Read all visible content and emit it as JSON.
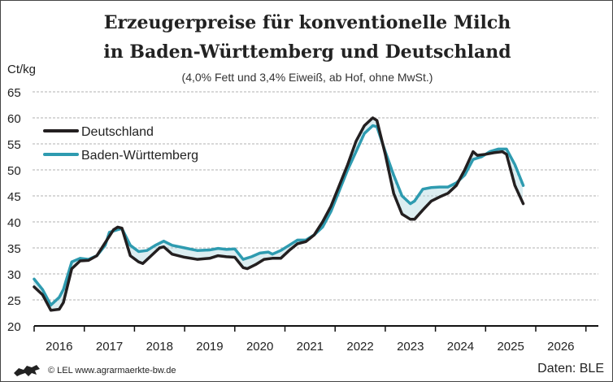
{
  "chart_data": {
    "type": "line",
    "title_line1": "Erzeugerpreise für konventionelle Milch",
    "title_line2": "in Baden-Württemberg und Deutschland",
    "subtitle": "(4,0% Fett und 3,4% Eiweiß, ab Hof, ohne MwSt.)",
    "ylabel": "Ct/kg",
    "ylim": [
      20,
      65
    ],
    "yticks": [
      20,
      25,
      30,
      35,
      40,
      45,
      50,
      55,
      60,
      65
    ],
    "xticks": [
      "2016",
      "2017",
      "2018",
      "2019",
      "2020",
      "2021",
      "2022",
      "2023",
      "2024",
      "2025",
      "2026"
    ],
    "grid": true,
    "legend_placement": "top-left",
    "series": [
      {
        "name": "Deutschland",
        "color": "#231f20",
        "points": [
          [
            "2016-01",
            27.5
          ],
          [
            "2016-03",
            26
          ],
          [
            "2016-05",
            23
          ],
          [
            "2016-07",
            23.2
          ],
          [
            "2016-08",
            24.5
          ],
          [
            "2016-10",
            31
          ],
          [
            "2016-12",
            32.5
          ],
          [
            "2017-02",
            32.6
          ],
          [
            "2017-04",
            33.5
          ],
          [
            "2017-06",
            36
          ],
          [
            "2017-08",
            38.5
          ],
          [
            "2017-09",
            39
          ],
          [
            "2017-10",
            38.8
          ],
          [
            "2017-12",
            33.5
          ],
          [
            "2018-02",
            32.3
          ],
          [
            "2018-03",
            32
          ],
          [
            "2018-05",
            33.5
          ],
          [
            "2018-07",
            35
          ],
          [
            "2018-08",
            35.2
          ],
          [
            "2018-10",
            33.8
          ],
          [
            "2019-01",
            33.2
          ],
          [
            "2019-04",
            32.8
          ],
          [
            "2019-07",
            33
          ],
          [
            "2019-09",
            33.5
          ],
          [
            "2019-11",
            33.3
          ],
          [
            "2020-01",
            33.2
          ],
          [
            "2020-03",
            31.2
          ],
          [
            "2020-04",
            31
          ],
          [
            "2020-06",
            31.8
          ],
          [
            "2020-08",
            32.8
          ],
          [
            "2020-10",
            33
          ],
          [
            "2020-12",
            33
          ],
          [
            "2021-02",
            34.5
          ],
          [
            "2021-04",
            35.8
          ],
          [
            "2021-06",
            36.2
          ],
          [
            "2021-08",
            37.5
          ],
          [
            "2021-10",
            40
          ],
          [
            "2021-12",
            43
          ],
          [
            "2022-02",
            47
          ],
          [
            "2022-04",
            51
          ],
          [
            "2022-06",
            55.5
          ],
          [
            "2022-08",
            58.5
          ],
          [
            "2022-10",
            60
          ],
          [
            "2022-11",
            59.5
          ],
          [
            "2023-01",
            53
          ],
          [
            "2023-03",
            45.5
          ],
          [
            "2023-05",
            41.5
          ],
          [
            "2023-07",
            40.5
          ],
          [
            "2023-08",
            40.5
          ],
          [
            "2023-10",
            42.3
          ],
          [
            "2023-12",
            44
          ],
          [
            "2024-02",
            44.8
          ],
          [
            "2024-04",
            45.5
          ],
          [
            "2024-06",
            47
          ],
          [
            "2024-08",
            50
          ],
          [
            "2024-10",
            53.5
          ],
          [
            "2024-11",
            52.8
          ],
          [
            "2025-01",
            53
          ],
          [
            "2025-03",
            53.3
          ],
          [
            "2025-05",
            53.5
          ],
          [
            "2025-06",
            53
          ],
          [
            "2025-08",
            47
          ],
          [
            "2025-10",
            43.5
          ]
        ]
      },
      {
        "name": "Baden-Württemberg",
        "color": "#2e9bb0",
        "points": [
          [
            "2016-01",
            29
          ],
          [
            "2016-03",
            27
          ],
          [
            "2016-05",
            24
          ],
          [
            "2016-07",
            25.5
          ],
          [
            "2016-08",
            27
          ],
          [
            "2016-10",
            32.3
          ],
          [
            "2016-12",
            33
          ],
          [
            "2017-02",
            32.8
          ],
          [
            "2017-04",
            33.5
          ],
          [
            "2017-06",
            35.5
          ],
          [
            "2017-07",
            38
          ],
          [
            "2017-09",
            38.5
          ],
          [
            "2017-10",
            38.7
          ],
          [
            "2017-12",
            35.5
          ],
          [
            "2018-02",
            34.3
          ],
          [
            "2018-04",
            34.5
          ],
          [
            "2018-06",
            35.5
          ],
          [
            "2018-08",
            36.3
          ],
          [
            "2018-10",
            35.5
          ],
          [
            "2019-01",
            35
          ],
          [
            "2019-04",
            34.5
          ],
          [
            "2019-07",
            34.6
          ],
          [
            "2019-09",
            34.9
          ],
          [
            "2019-11",
            34.7
          ],
          [
            "2020-01",
            34.8
          ],
          [
            "2020-03",
            32.8
          ],
          [
            "2020-05",
            33.3
          ],
          [
            "2020-07",
            34
          ],
          [
            "2020-09",
            34.2
          ],
          [
            "2020-10",
            33.8
          ],
          [
            "2020-12",
            34.5
          ],
          [
            "2021-02",
            35.5
          ],
          [
            "2021-04",
            36.5
          ],
          [
            "2021-06",
            36.5
          ],
          [
            "2021-08",
            37.5
          ],
          [
            "2021-10",
            39
          ],
          [
            "2021-12",
            42
          ],
          [
            "2022-02",
            46
          ],
          [
            "2022-04",
            50
          ],
          [
            "2022-06",
            53.5
          ],
          [
            "2022-08",
            57
          ],
          [
            "2022-10",
            58.5
          ],
          [
            "2022-11",
            58.3
          ],
          [
            "2023-01",
            53.5
          ],
          [
            "2023-03",
            49
          ],
          [
            "2023-05",
            45
          ],
          [
            "2023-07",
            43.5
          ],
          [
            "2023-08",
            44
          ],
          [
            "2023-10",
            46.3
          ],
          [
            "2023-12",
            46.6
          ],
          [
            "2024-02",
            46.7
          ],
          [
            "2024-04",
            46.7
          ],
          [
            "2024-06",
            47.5
          ],
          [
            "2024-08",
            49
          ],
          [
            "2024-10",
            52
          ],
          [
            "2024-12",
            52.5
          ],
          [
            "2025-02",
            53.5
          ],
          [
            "2025-04",
            54
          ],
          [
            "2025-06",
            54
          ],
          [
            "2025-08",
            51
          ],
          [
            "2025-10",
            47
          ]
        ]
      }
    ],
    "hatch_color": "#a9d3dc"
  },
  "footer": {
    "copyright": "© LEL www.agrarmaerkte-bw.de",
    "source": "Daten: BLE",
    "logo_icon": "lion-coat-of-arms-icon"
  }
}
